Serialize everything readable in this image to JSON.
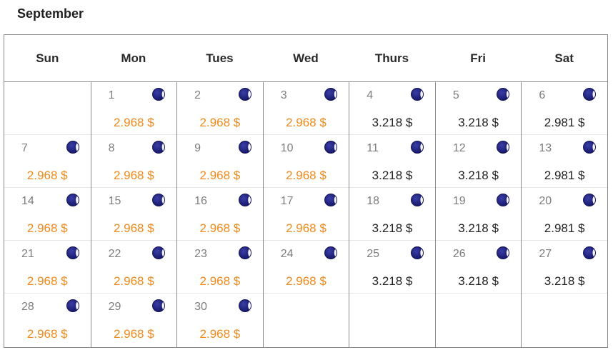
{
  "month": "September",
  "weekdays": [
    "Sun",
    "Mon",
    "Tues",
    "Wed",
    "Thurs",
    "Fri",
    "Sat"
  ],
  "colors": {
    "special_price": "#f08a1c",
    "regular_price": "#222222",
    "moon_icon": "#191b6e"
  },
  "icon": "moon-icon",
  "weeks": [
    [
      null,
      {
        "day": "1",
        "price": "2.968 $",
        "highlight": true
      },
      {
        "day": "2",
        "price": "2.968 $",
        "highlight": true
      },
      {
        "day": "3",
        "price": "2.968 $",
        "highlight": true
      },
      {
        "day": "4",
        "price": "3.218 $",
        "highlight": false
      },
      {
        "day": "5",
        "price": "3.218 $",
        "highlight": false
      },
      {
        "day": "6",
        "price": "2.981 $",
        "highlight": false
      }
    ],
    [
      {
        "day": "7",
        "price": "2.968 $",
        "highlight": true
      },
      {
        "day": "8",
        "price": "2.968 $",
        "highlight": true
      },
      {
        "day": "9",
        "price": "2.968 $",
        "highlight": true
      },
      {
        "day": "10",
        "price": "2.968 $",
        "highlight": true
      },
      {
        "day": "11",
        "price": "3.218 $",
        "highlight": false
      },
      {
        "day": "12",
        "price": "3.218 $",
        "highlight": false
      },
      {
        "day": "13",
        "price": "2.981 $",
        "highlight": false
      }
    ],
    [
      {
        "day": "14",
        "price": "2.968 $",
        "highlight": true
      },
      {
        "day": "15",
        "price": "2.968 $",
        "highlight": true
      },
      {
        "day": "16",
        "price": "2.968 $",
        "highlight": true
      },
      {
        "day": "17",
        "price": "2.968 $",
        "highlight": true
      },
      {
        "day": "18",
        "price": "3.218 $",
        "highlight": false
      },
      {
        "day": "19",
        "price": "3.218 $",
        "highlight": false
      },
      {
        "day": "20",
        "price": "2.981 $",
        "highlight": false
      }
    ],
    [
      {
        "day": "21",
        "price": "2.968 $",
        "highlight": true
      },
      {
        "day": "22",
        "price": "2.968 $",
        "highlight": true
      },
      {
        "day": "23",
        "price": "2.968 $",
        "highlight": true
      },
      {
        "day": "24",
        "price": "2.968 $",
        "highlight": true
      },
      {
        "day": "25",
        "price": "3.218 $",
        "highlight": false
      },
      {
        "day": "26",
        "price": "3.218 $",
        "highlight": false
      },
      {
        "day": "27",
        "price": "3.218 $",
        "highlight": false
      }
    ],
    [
      {
        "day": "28",
        "price": "2.968 $",
        "highlight": true
      },
      {
        "day": "29",
        "price": "2.968 $",
        "highlight": true
      },
      {
        "day": "30",
        "price": "2.968 $",
        "highlight": true
      },
      null,
      null,
      null,
      null
    ]
  ]
}
